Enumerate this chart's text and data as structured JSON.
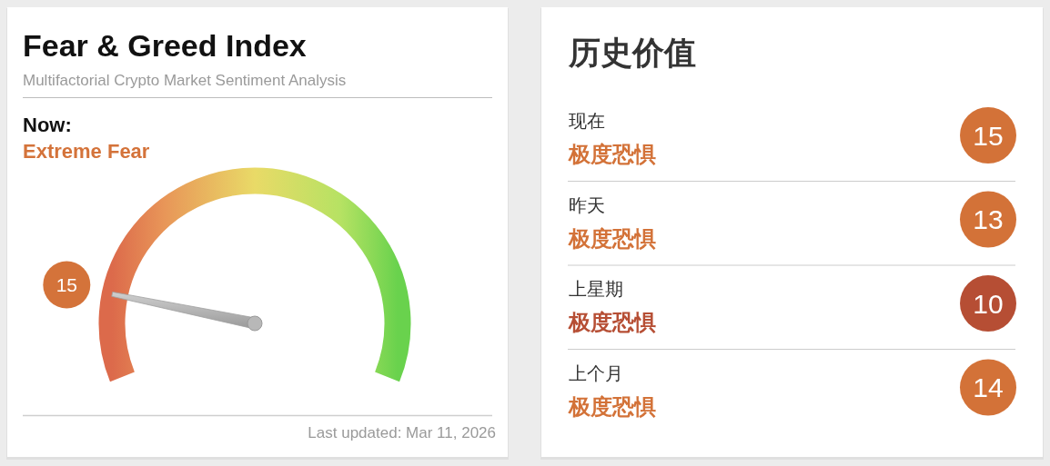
{
  "chart_data": [
    {
      "type": "other",
      "title": "Fear & Greed Index",
      "subtitle": "Multifactorial Crypto Market Sentiment Analysis",
      "values": [
        15
      ],
      "colors": [
        "#d4733a"
      ],
      "data_labels": true,
      "annotations": [
        "Now:",
        "Extreme Fear",
        "Last updated: Mar 11, 2026"
      ]
    },
    {
      "type": "other",
      "title": "历史价值",
      "categories": [
        "现在",
        "昨天",
        "上星期",
        "上个月"
      ],
      "values": [
        15,
        13,
        10,
        14
      ],
      "colors": [
        "#d37238",
        "#d37238",
        "#b64e34",
        "#d37238"
      ],
      "data_labels": true,
      "annotations": [
        "极度恐惧",
        "极度恐惧",
        "极度恐惧",
        "极度恐惧"
      ]
    }
  ]
}
